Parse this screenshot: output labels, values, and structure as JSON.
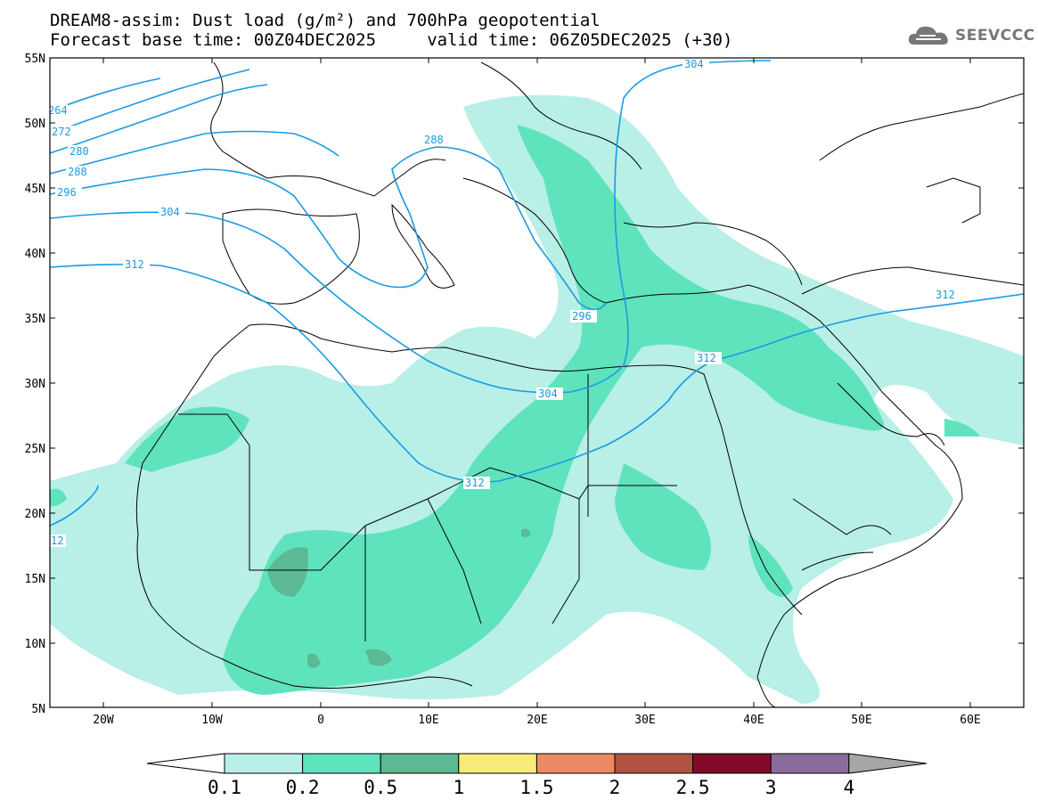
{
  "header": {
    "line1": "DREAM8-assim: Dust load (g/m²) and 700hPa geopotential",
    "line2": "Forecast base time: 00Z04DEC2025     valid time: 06Z05DEC2025 (+30)"
  },
  "logo": {
    "text": "SEEVCCC",
    "icon": "cloud-icon"
  },
  "map": {
    "lat_labels": [
      "55N",
      "50N",
      "45N",
      "40N",
      "35N",
      "30N",
      "25N",
      "20N",
      "15N",
      "10N",
      "5N"
    ],
    "lon_labels": [
      "20W",
      "10W",
      "0",
      "10E",
      "20E",
      "30E",
      "40E",
      "50E",
      "60E"
    ],
    "contour_labels": [
      "264",
      "272",
      "280",
      "288",
      "296",
      "304",
      "312",
      "288",
      "304",
      "296",
      "312",
      "312",
      "304",
      "312",
      "12"
    ],
    "colors": {
      "contour": "#1a9be3",
      "coast": "#000000",
      "level_0_1": "#b8efe6",
      "level_0_2": "#5fe3bd",
      "level_0_5": "#5bb994"
    }
  },
  "colorbar": {
    "labels": [
      "0.1",
      "0.2",
      "0.5",
      "1",
      "1.5",
      "2",
      "2.5",
      "3",
      "4"
    ],
    "colors": [
      "#ffffff",
      "#b8efe6",
      "#5fe3bd",
      "#5bb994",
      "#f7ec7a",
      "#ea8b63",
      "#b05342",
      "#820b2c",
      "#8a6b9e",
      "#a7a7a7"
    ]
  }
}
